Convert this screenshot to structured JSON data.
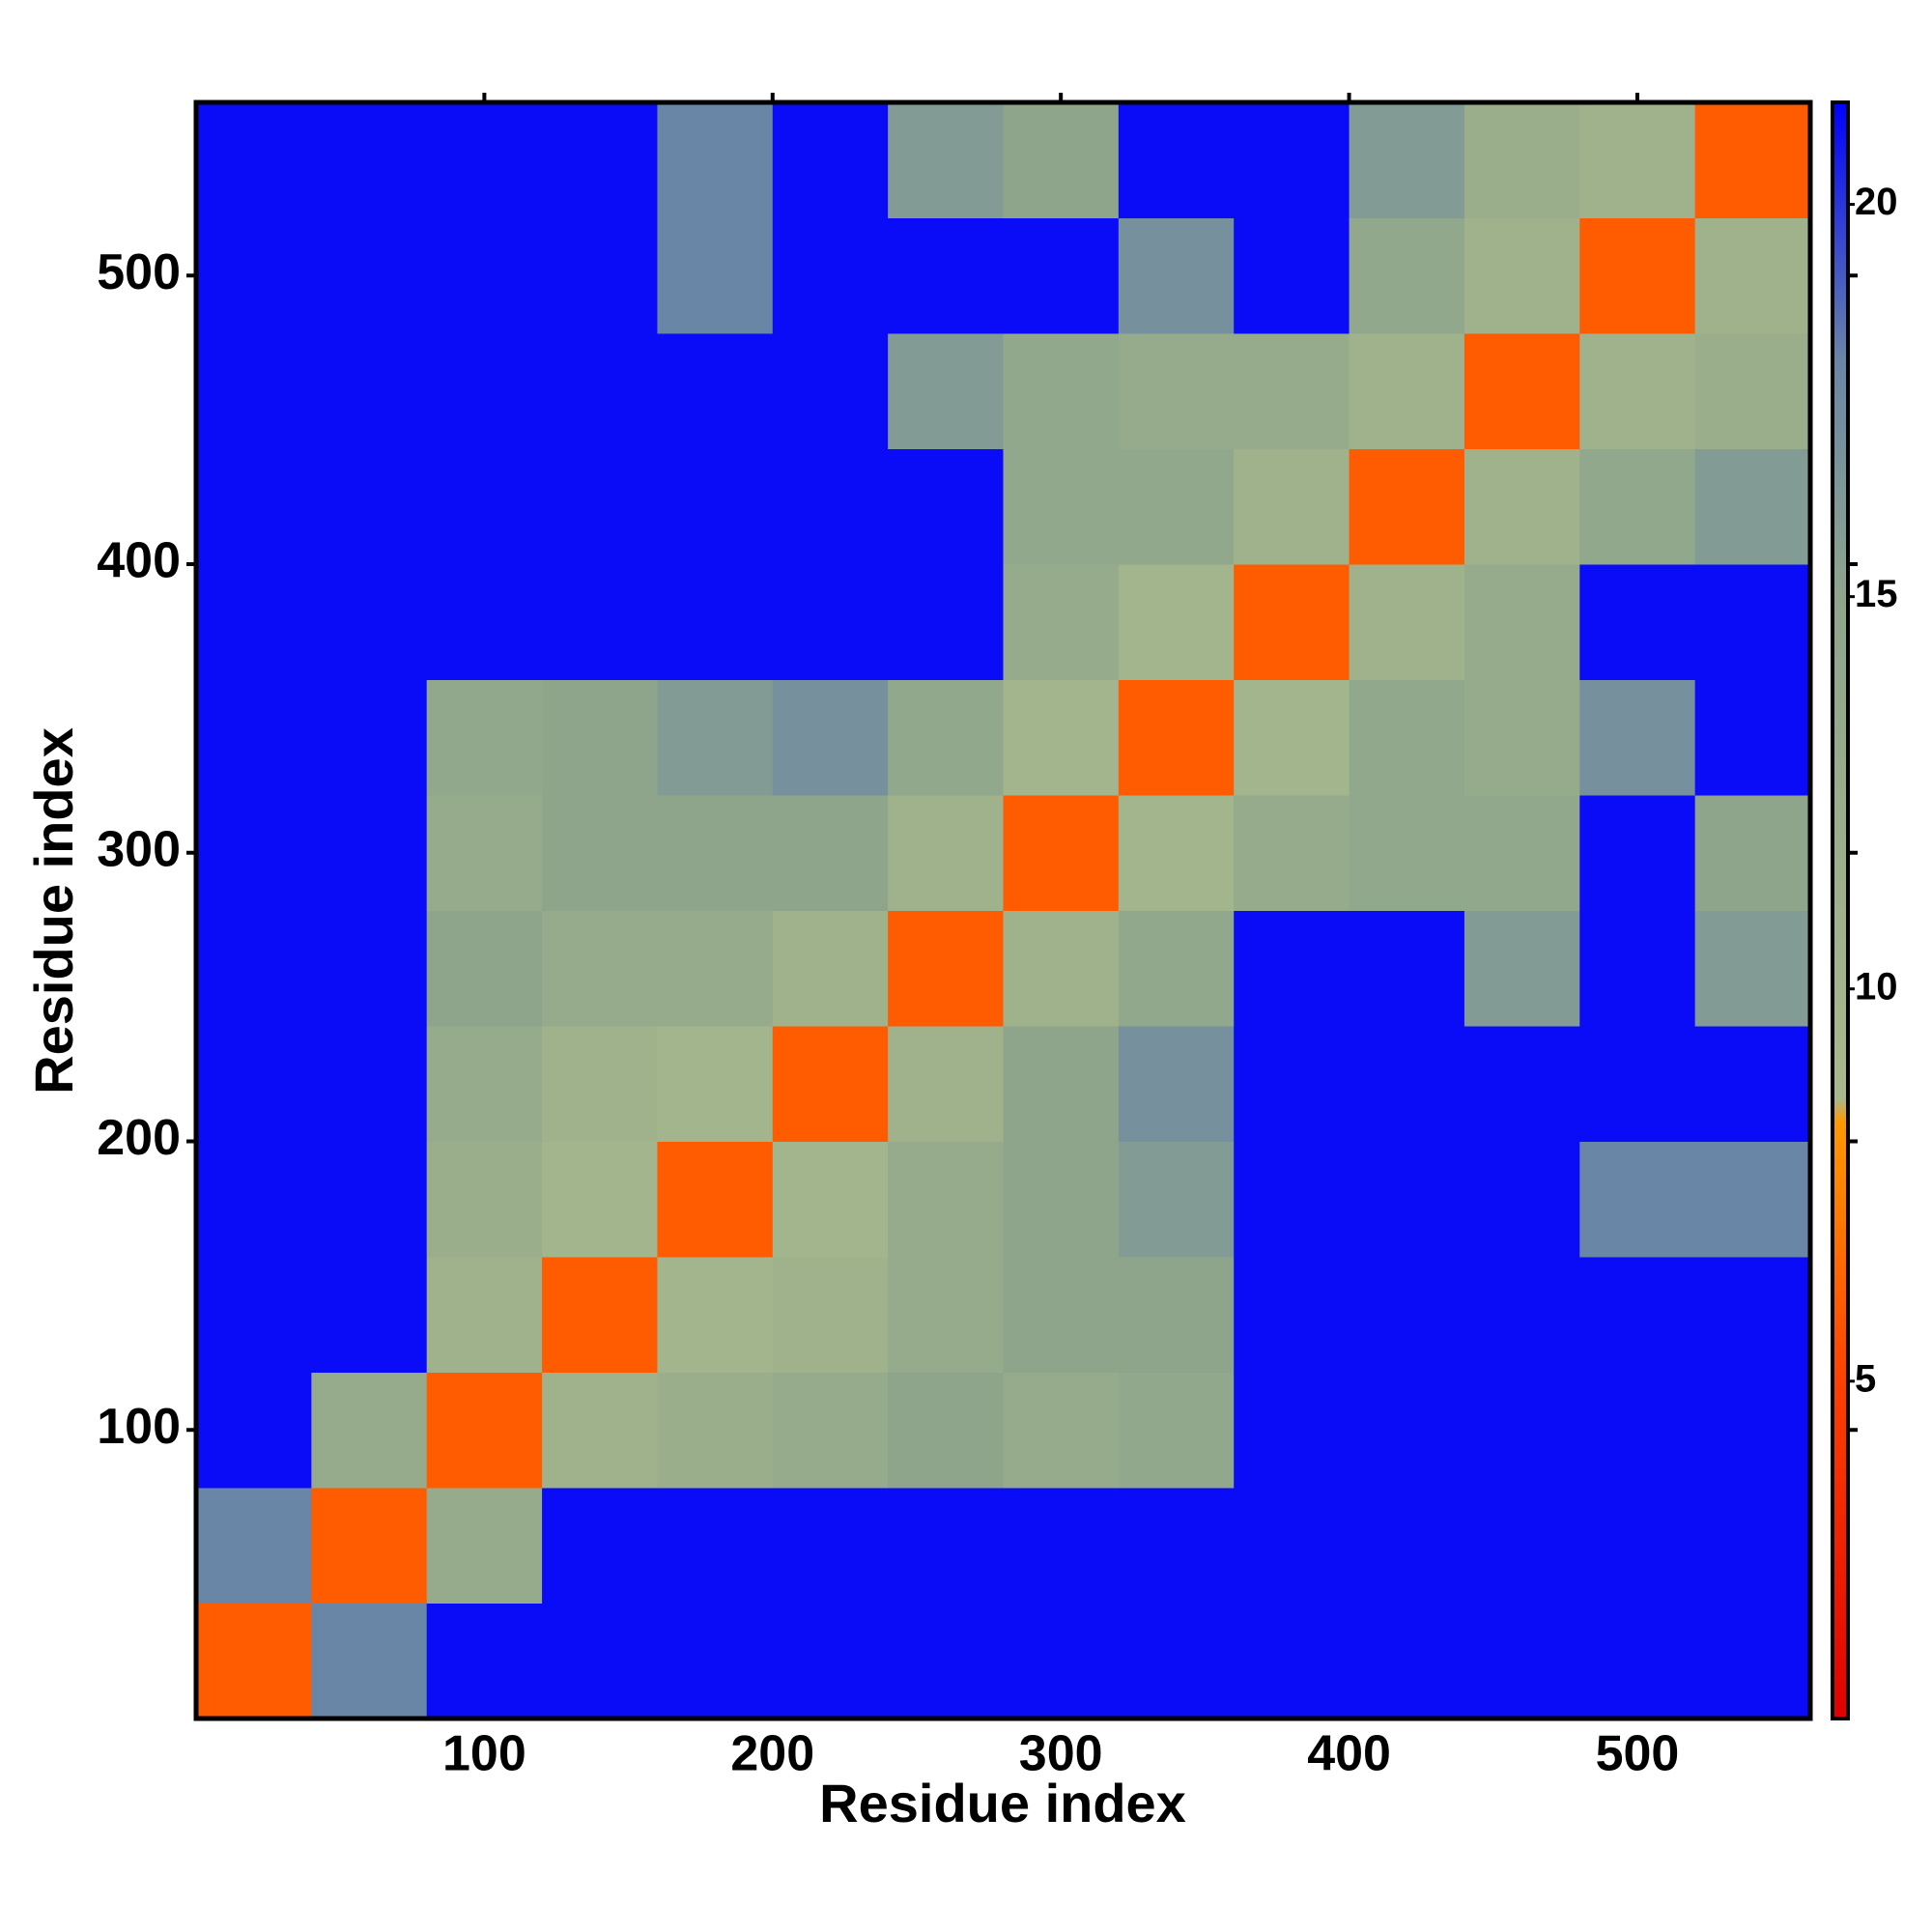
{
  "chart_data": {
    "type": "heatmap",
    "xlabel": "Residue index",
    "ylabel": "Residue index",
    "bins": [
      0,
      40,
      80,
      120,
      160,
      200,
      240,
      280,
      320,
      360,
      400,
      440,
      480,
      520,
      560
    ],
    "values": [
      [
        6,
        18,
        21,
        21,
        21,
        21,
        21,
        21,
        21,
        21,
        21,
        21,
        21,
        21
      ],
      [
        18,
        6,
        13,
        21,
        21,
        21,
        21,
        21,
        21,
        21,
        21,
        21,
        21,
        21
      ],
      [
        21,
        13,
        6,
        11,
        12,
        13,
        15,
        13,
        14,
        21,
        21,
        21,
        21,
        21
      ],
      [
        21,
        21,
        11,
        6,
        10,
        11,
        13,
        15,
        15,
        21,
        21,
        21,
        21,
        21
      ],
      [
        21,
        21,
        12,
        10,
        6,
        10,
        13,
        15,
        16,
        21,
        21,
        21,
        18,
        18
      ],
      [
        21,
        21,
        13,
        11,
        10,
        6,
        11,
        15,
        17,
        21,
        21,
        21,
        21,
        21
      ],
      [
        21,
        21,
        15,
        13,
        13,
        11,
        6,
        11,
        14,
        21,
        21,
        16,
        21,
        16
      ],
      [
        21,
        21,
        13,
        15,
        15,
        15,
        11,
        6,
        10,
        13,
        14,
        14,
        21,
        15
      ],
      [
        21,
        21,
        14,
        15,
        16,
        17,
        14,
        10,
        6,
        10,
        14,
        13,
        17,
        21
      ],
      [
        21,
        21,
        21,
        21,
        21,
        21,
        21,
        13,
        10,
        6,
        11,
        13,
        21,
        21
      ],
      [
        21,
        21,
        21,
        21,
        21,
        21,
        21,
        14,
        14,
        11,
        6,
        11,
        14,
        16
      ],
      [
        21,
        21,
        21,
        21,
        21,
        21,
        16,
        14,
        13,
        13,
        11,
        6,
        11,
        12
      ],
      [
        21,
        21,
        21,
        21,
        18,
        21,
        21,
        21,
        17,
        21,
        14,
        11,
        6,
        11
      ],
      [
        21,
        21,
        21,
        21,
        18,
        21,
        16,
        15,
        21,
        21,
        16,
        12,
        11,
        6
      ]
    ],
    "xlim": [
      0,
      560
    ],
    "ylim": [
      0,
      560
    ],
    "xticks": [
      100,
      200,
      300,
      400,
      500
    ],
    "yticks": [
      100,
      200,
      300,
      400,
      500
    ],
    "colorbar": {
      "clim": [
        0.7,
        21.3
      ],
      "ticks": [
        5,
        10,
        15,
        20
      ],
      "stops": [
        [
          0.7,
          "#e00000"
        ],
        [
          5,
          "#ff4000"
        ],
        [
          8.3,
          "#ff9900"
        ],
        [
          8.6,
          "#a9b98c"
        ],
        [
          15,
          "#8ea58c"
        ],
        [
          18,
          "#6a86a6"
        ],
        [
          21.3,
          "#0000ff"
        ]
      ]
    }
  }
}
